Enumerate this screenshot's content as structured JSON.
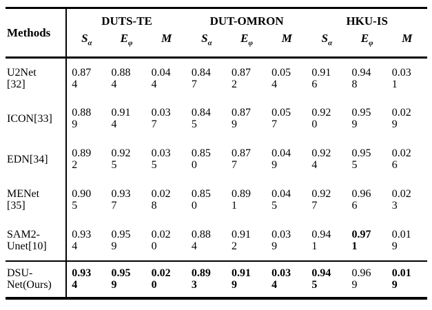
{
  "table": {
    "methods_header": "Methods",
    "datasets": [
      {
        "name": "DUTS-TE"
      },
      {
        "name": "DUT-OMRON"
      },
      {
        "name": "HKU-IS"
      }
    ],
    "metrics": [
      {
        "base": "S",
        "sub": "α"
      },
      {
        "base": "E",
        "sub": "φ"
      },
      {
        "base": "M",
        "sub": ""
      }
    ],
    "rows": [
      {
        "method": "U2Net [32]",
        "method_lines": [
          "U2Net",
          "[32]"
        ],
        "values": [
          {
            "text": "0.874",
            "bold": false
          },
          {
            "text": "0.884",
            "bold": false
          },
          {
            "text": "0.044",
            "bold": false
          },
          {
            "text": "0.847",
            "bold": false
          },
          {
            "text": "0.872",
            "bold": false
          },
          {
            "text": "0.054",
            "bold": false
          },
          {
            "text": "0.916",
            "bold": false
          },
          {
            "text": "0.948",
            "bold": false
          },
          {
            "text": "0.031",
            "bold": false
          }
        ]
      },
      {
        "method": "ICON[33]",
        "method_lines": [
          "ICON[33]"
        ],
        "values": [
          {
            "text": "0.889",
            "bold": false
          },
          {
            "text": "0.914",
            "bold": false
          },
          {
            "text": "0.037",
            "bold": false
          },
          {
            "text": "0.845",
            "bold": false
          },
          {
            "text": "0.879",
            "bold": false
          },
          {
            "text": "0.057",
            "bold": false
          },
          {
            "text": "0.920",
            "bold": false
          },
          {
            "text": "0.959",
            "bold": false
          },
          {
            "text": "0.029",
            "bold": false
          }
        ]
      },
      {
        "method": "EDN[34]",
        "method_lines": [
          "EDN[34]"
        ],
        "values": [
          {
            "text": "0.892",
            "bold": false
          },
          {
            "text": "0.925",
            "bold": false
          },
          {
            "text": "0.035",
            "bold": false
          },
          {
            "text": "0.850",
            "bold": false
          },
          {
            "text": "0.877",
            "bold": false
          },
          {
            "text": "0.049",
            "bold": false
          },
          {
            "text": "0.924",
            "bold": false
          },
          {
            "text": "0.955",
            "bold": false
          },
          {
            "text": "0.026",
            "bold": false
          }
        ]
      },
      {
        "method": "MENet [35]",
        "method_lines": [
          "MENet",
          "[35]"
        ],
        "values": [
          {
            "text": "0.905",
            "bold": false
          },
          {
            "text": "0.937",
            "bold": false
          },
          {
            "text": "0.028",
            "bold": false
          },
          {
            "text": "0.850",
            "bold": false
          },
          {
            "text": "0.891",
            "bold": false
          },
          {
            "text": "0.045",
            "bold": false
          },
          {
            "text": "0.927",
            "bold": false
          },
          {
            "text": "0.966",
            "bold": false
          },
          {
            "text": "0.023",
            "bold": false
          }
        ]
      },
      {
        "method": "SAM2-Unet[10]",
        "method_lines": [
          "SAM2-",
          "Unet[10]"
        ],
        "values": [
          {
            "text": "0.934",
            "bold": false
          },
          {
            "text": "0.959",
            "bold": false
          },
          {
            "text": "0.020",
            "bold": false
          },
          {
            "text": "0.884",
            "bold": false
          },
          {
            "text": "0.912",
            "bold": false
          },
          {
            "text": "0.039",
            "bold": false
          },
          {
            "text": "0.941",
            "bold": false
          },
          {
            "text": "0.971",
            "bold": true
          },
          {
            "text": "0.019",
            "bold": false
          }
        ]
      },
      {
        "method": "DSU-Net(Ours)",
        "method_lines": [
          "DSU-",
          "Net(Ours)"
        ],
        "values": [
          {
            "text": "0.934",
            "bold": true
          },
          {
            "text": "0.959",
            "bold": true
          },
          {
            "text": "0.020",
            "bold": true
          },
          {
            "text": "0.893",
            "bold": true
          },
          {
            "text": "0.919",
            "bold": true
          },
          {
            "text": "0.034",
            "bold": true
          },
          {
            "text": "0.945",
            "bold": true
          },
          {
            "text": "0.969",
            "bold": false
          },
          {
            "text": "0.019",
            "bold": true
          }
        ]
      }
    ]
  },
  "colors": {
    "text": "#000000",
    "background": "#ffffff",
    "border": "#000000"
  }
}
